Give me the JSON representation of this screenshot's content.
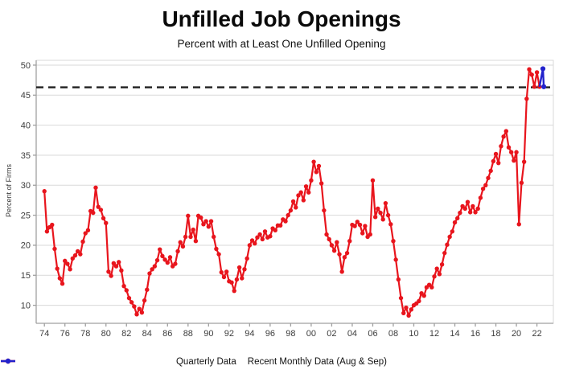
{
  "title": "Unfilled Job Openings",
  "subtitle": "Percent with at Least One Unfilled Opening",
  "chart_data": {
    "type": "line",
    "title": "Unfilled Job Openings",
    "subtitle": "Percent with at Least One Unfilled Opening",
    "xlabel": "",
    "ylabel": "Percent of Firms",
    "ylim": [
      7,
      50.8
    ],
    "xlim": [
      1973.2,
      2023.6
    ],
    "yticks": [
      10,
      15,
      20,
      25,
      30,
      35,
      40,
      45,
      50
    ],
    "xticks": [
      1974,
      1976,
      1978,
      1980,
      1982,
      1984,
      1986,
      1988,
      1990,
      1992,
      1994,
      1996,
      1998,
      2000,
      2002,
      2004,
      2006,
      2008,
      2010,
      2012,
      2014,
      2016,
      2018,
      2020,
      2022
    ],
    "xtick_labels": [
      "74",
      "76",
      "78",
      "80",
      "82",
      "84",
      "86",
      "88",
      "90",
      "92",
      "94",
      "96",
      "98",
      "00",
      "02",
      "04",
      "06",
      "08",
      "10",
      "12",
      "14",
      "16",
      "18",
      "20",
      "22"
    ],
    "grid": "horizontal",
    "grid_color": "#d9d9d9",
    "spine_color": "#a0a0a0",
    "tick_label_color": "#3d3d3d",
    "legend_position": "bottom",
    "reference_line": {
      "value": 46.3,
      "style": "dashed",
      "color": "#1f1f1f",
      "width": 2.4,
      "dash": "9,6"
    },
    "series": [
      {
        "name": "Quarterly Data",
        "color": "#e8151d",
        "marker": "circle",
        "start": 1974.0,
        "step": 0.25,
        "values": [
          29.0,
          22.3,
          23.0,
          23.4,
          19.4,
          16.1,
          14.5,
          13.6,
          17.4,
          16.9,
          16.0,
          17.8,
          18.3,
          19.0,
          18.5,
          20.6,
          22.0,
          22.5,
          25.7,
          25.4,
          29.6,
          26.4,
          25.9,
          24.5,
          23.7,
          15.6,
          14.9,
          17.0,
          16.5,
          17.2,
          15.8,
          13.2,
          12.5,
          11.2,
          10.5,
          9.8,
          8.5,
          9.4,
          8.8,
          10.8,
          12.6,
          15.3,
          16.0,
          16.5,
          17.5,
          19.3,
          18.2,
          17.6,
          17.1,
          18.0,
          16.5,
          16.9,
          19.0,
          20.5,
          19.8,
          21.4,
          24.9,
          21.4,
          22.6,
          20.7,
          24.9,
          24.6,
          23.5,
          24.0,
          23.1,
          24.0,
          21.4,
          19.4,
          18.5,
          15.5,
          14.7,
          15.6,
          14.0,
          13.8,
          12.4,
          14.3,
          16.3,
          14.5,
          16.0,
          17.8,
          20.0,
          20.8,
          20.3,
          21.3,
          21.8,
          21.0,
          22.3,
          21.3,
          21.5,
          22.8,
          22.5,
          23.3,
          23.3,
          24.3,
          24.0,
          25.0,
          25.8,
          27.3,
          26.3,
          28.3,
          28.8,
          27.5,
          29.8,
          28.8,
          30.8,
          33.9,
          32.2,
          33.2,
          30.3,
          25.8,
          21.8,
          21.0,
          20.0,
          19.1,
          20.5,
          18.5,
          15.6,
          18.0,
          18.7,
          20.7,
          23.4,
          23.2,
          23.9,
          23.4,
          22.0,
          23.2,
          21.4,
          21.8,
          30.8,
          24.7,
          26.1,
          25.4,
          24.3,
          27.0,
          25.0,
          23.5,
          20.7,
          17.6,
          14.3,
          11.2,
          8.7,
          9.6,
          8.3,
          9.3,
          10.0,
          10.3,
          10.7,
          12.0,
          11.6,
          13.0,
          13.4,
          13.0,
          14.8,
          16.1,
          15.2,
          16.8,
          18.7,
          20.1,
          21.4,
          22.3,
          23.8,
          24.5,
          25.4,
          26.5,
          26.1,
          27.2,
          25.5,
          26.5,
          25.5,
          26.1,
          27.9,
          29.4,
          30.0,
          31.2,
          32.4,
          34.0,
          35.2,
          33.7,
          36.5,
          38.1,
          39.0,
          36.3,
          35.5,
          34.1,
          35.5,
          23.5,
          30.4,
          33.9,
          44.4,
          49.3,
          48.4,
          46.4,
          48.8,
          46.4
        ]
      },
      {
        "name": "Recent Monthly Data (Aug & Sep)",
        "color": "#2222cc",
        "marker": "circle",
        "x": [
          2022.583,
          2022.667
        ],
        "values": [
          49.4,
          46.4
        ]
      }
    ]
  }
}
